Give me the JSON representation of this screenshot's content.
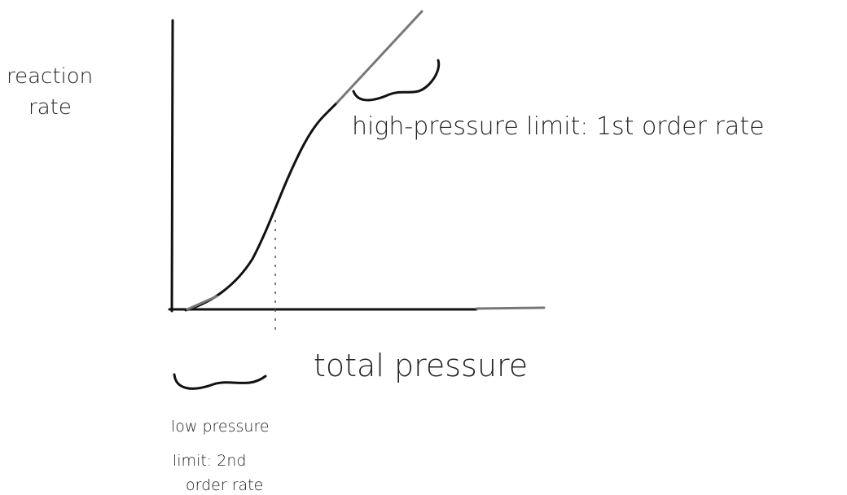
{
  "y_axis_label": [
    "reaction",
    "rate"
  ],
  "x_axis_label": "total pressure",
  "high_pressure_annotation": "high-pressure limit: 1st order rate",
  "low_pressure_annotation": [
    "low pressure",
    "limit: 2nd",
    "order rate"
  ]
}
